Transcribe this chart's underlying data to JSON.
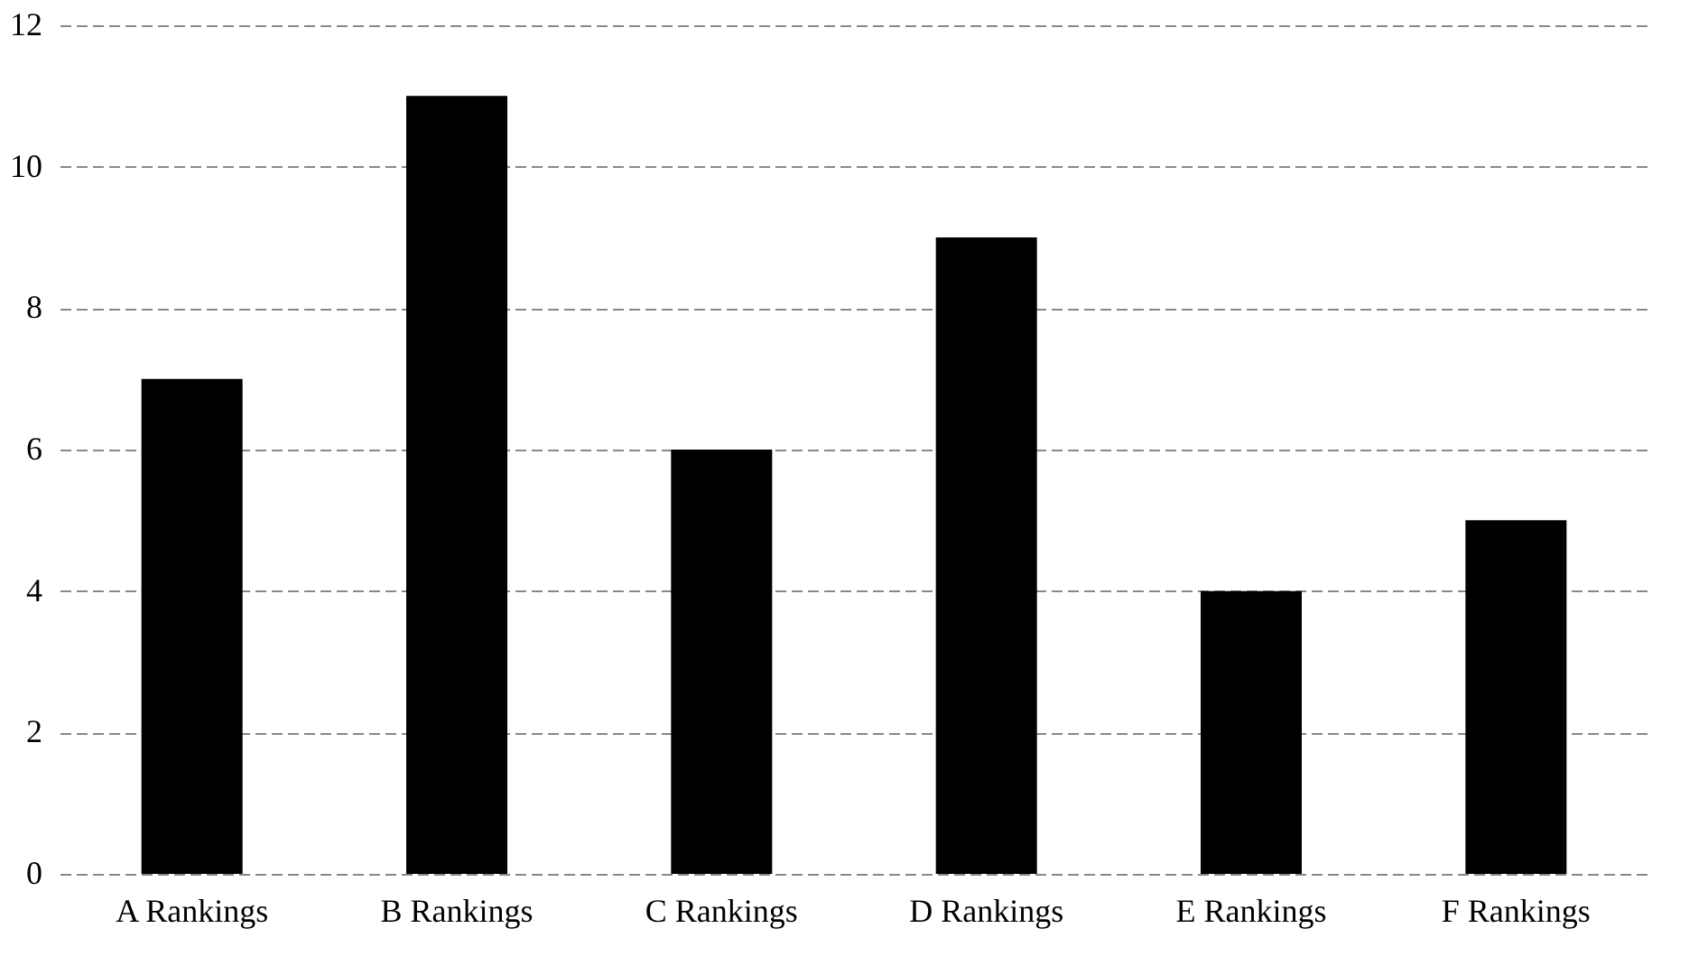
{
  "chart_data": {
    "type": "bar",
    "categories": [
      "A Rankings",
      "B Rankings",
      "C Rankings",
      "D Rankings",
      "E Rankings",
      "F Rankings"
    ],
    "values": [
      7,
      11,
      6,
      9,
      4,
      5
    ],
    "color": "#000000",
    "ylim": [
      0,
      12
    ],
    "yticks": [
      0,
      2,
      4,
      6,
      8,
      10,
      12
    ],
    "grid": "y"
  }
}
